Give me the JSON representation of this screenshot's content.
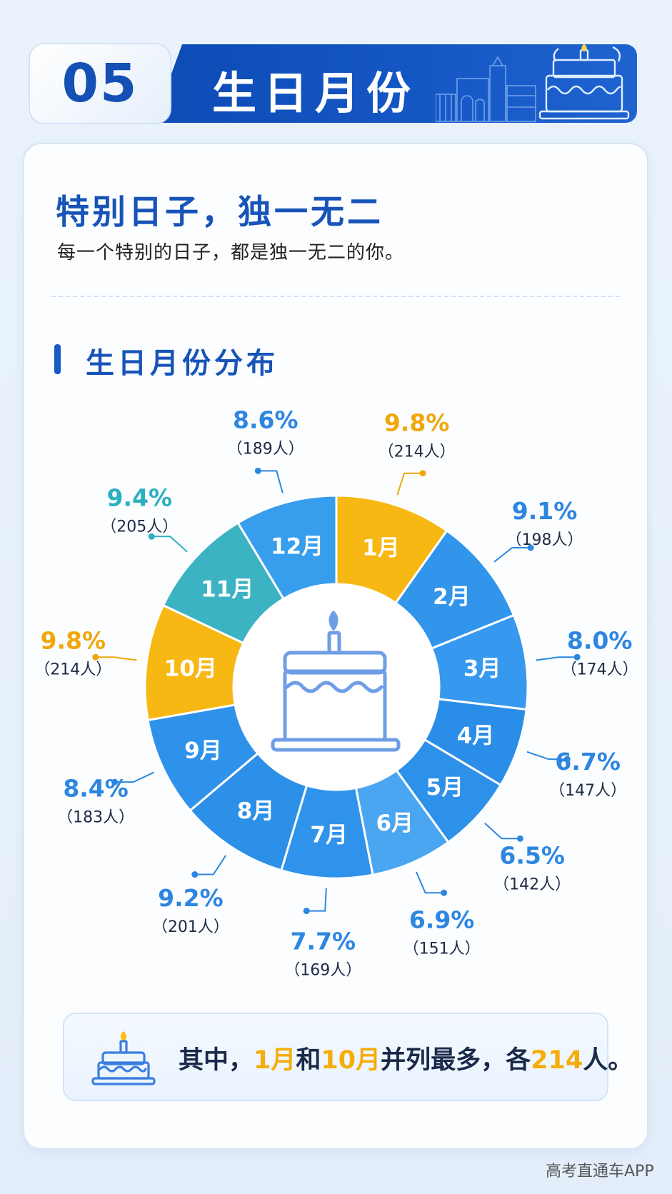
{
  "banner": {
    "number": "05",
    "title": "生日月份"
  },
  "card": {
    "heading": "特别日子，独一无二",
    "subheading": "每一个特别的日子，都是独一无二的你。",
    "section_title": "生日月份分布"
  },
  "colors": {
    "accent": "#1854b8",
    "highlight": "#f5ad0a",
    "teal": "#3aafc0",
    "blue": "#2f95ee"
  },
  "chart_data": {
    "type": "pie",
    "style": "donut",
    "categories": [
      "1月",
      "2月",
      "3月",
      "4月",
      "5月",
      "6月",
      "7月",
      "8月",
      "9月",
      "10月",
      "11月",
      "12月"
    ],
    "values": [
      9.8,
      9.1,
      8.0,
      6.7,
      6.5,
      6.9,
      7.7,
      9.2,
      8.4,
      9.8,
      9.4,
      8.6
    ],
    "counts": [
      214,
      198,
      174,
      147,
      142,
      151,
      169,
      201,
      183,
      214,
      205,
      189
    ],
    "percent_labels": [
      "9.8%",
      "9.1%",
      "8.0%",
      "6.7%",
      "6.5%",
      "6.9%",
      "7.7%",
      "9.2%",
      "8.4%",
      "9.8%",
      "9.4%",
      "8.6%"
    ],
    "count_labels": [
      "（214人）",
      "（198人）",
      "（174人）",
      "（147人）",
      "（142人）",
      "（151人）",
      "（169人）",
      "（201人）",
      "（183人）",
      "（214人）",
      "（205人）",
      "（189人）"
    ],
    "slice_colors": [
      "#f7b814",
      "#3295ec",
      "#3698ee",
      "#2a8de8",
      "#2d91ea",
      "#4aa6f0",
      "#2f93eb",
      "#2c8fe8",
      "#2e92ea",
      "#f7b814",
      "#3bb3c2",
      "#379ded"
    ],
    "label_colors": [
      "#f0a70a",
      "#2d86e0",
      "#2d86e0",
      "#2d86e0",
      "#2d86e0",
      "#2d86e0",
      "#2d86e0",
      "#2d86e0",
      "#2d86e0",
      "#f0a70a",
      "#2bb0bf",
      "#2d86e0"
    ],
    "center_icon": "birthday-cake-icon"
  },
  "note": {
    "icon": "birthday-cake-icon",
    "text_before": "其中，",
    "month1": "1月",
    "text_and": "和",
    "month2": "10月",
    "text_mid": "并列最多，各",
    "count": "214",
    "text_after": "人。"
  },
  "watermark": "高考直通车APP"
}
